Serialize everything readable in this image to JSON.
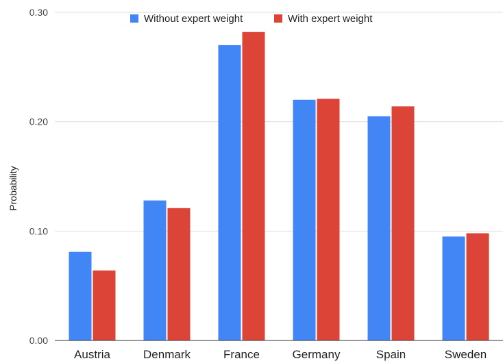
{
  "chart_data": {
    "type": "bar",
    "title": "",
    "xlabel": "",
    "ylabel": "Probability",
    "categories": [
      "Austria",
      "Denmark",
      "France",
      "Germany",
      "Spain",
      "Sweden"
    ],
    "series": [
      {
        "name": "Without expert weight",
        "color": "#4285f4",
        "values": [
          0.081,
          0.128,
          0.27,
          0.22,
          0.205,
          0.095
        ]
      },
      {
        "name": "With expert weight",
        "color": "#db4437",
        "values": [
          0.064,
          0.121,
          0.282,
          0.221,
          0.214,
          0.098
        ]
      }
    ],
    "ylim": [
      0,
      0.3
    ],
    "yticks": [
      {
        "value": 0.0,
        "label": "0.00"
      },
      {
        "value": 0.1,
        "label": "0.10"
      },
      {
        "value": 0.2,
        "label": "0.20"
      },
      {
        "value": 0.3,
        "label": "0.30"
      }
    ],
    "grid": true,
    "legend_position": "top"
  }
}
